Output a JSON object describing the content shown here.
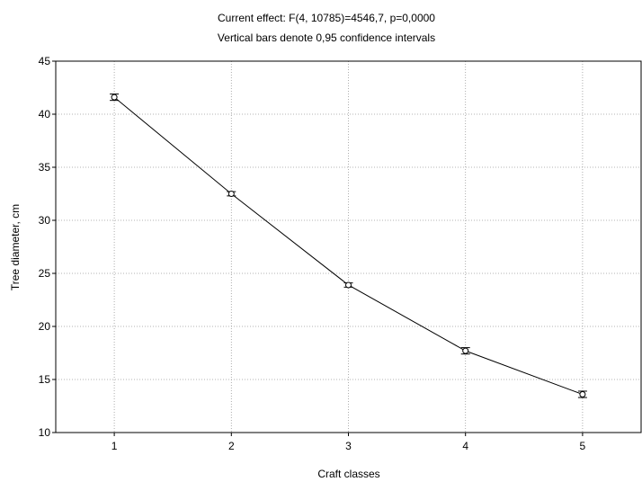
{
  "chart_data": {
    "type": "line",
    "title": "Current effect: F(4, 10785)=4546,7, p=0,0000",
    "subtitle": "Vertical bars denote 0,95 confidence intervals",
    "xlabel": "Craft classes",
    "ylabel": "Tree diameter, cm",
    "categories": [
      "1",
      "2",
      "3",
      "4",
      "5"
    ],
    "x": [
      1,
      2,
      3,
      4,
      5
    ],
    "series": [
      {
        "values": [
          41.6,
          32.5,
          23.9,
          17.7,
          13.6
        ],
        "ci_low": [
          41.3,
          32.3,
          23.7,
          17.4,
          13.3
        ],
        "ci_high": [
          41.9,
          32.7,
          24.1,
          18.0,
          13.9
        ],
        "color": "#000000"
      }
    ],
    "xlim": [
      0.5,
      5.5
    ],
    "ylim": [
      10,
      45
    ],
    "yticks": [
      "10",
      "15",
      "20",
      "25",
      "30",
      "35",
      "40",
      "45"
    ],
    "grid": true,
    "legend": "none"
  }
}
